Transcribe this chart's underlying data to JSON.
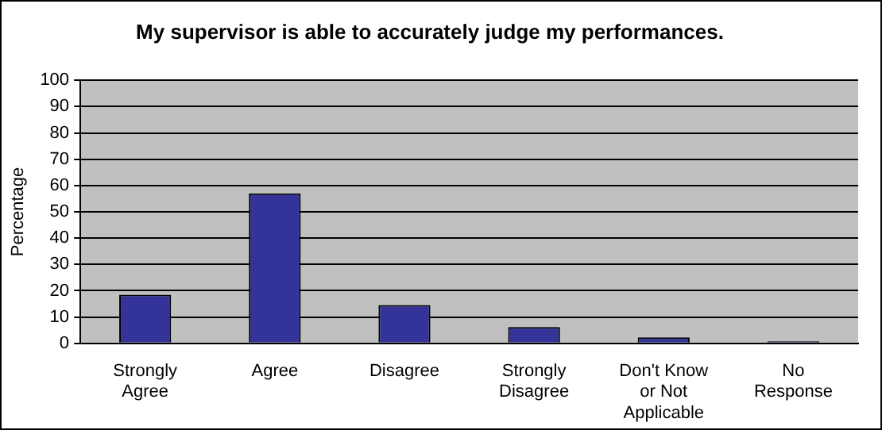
{
  "chart_data": {
    "type": "bar",
    "title": "My supervisor is able to accurately judge my performances.",
    "ylabel": "Percentage",
    "categories": [
      "Strongly Agree",
      "Agree",
      "Disagree",
      "Strongly Disagree",
      "Don't Know or Not Applicable",
      "No Response"
    ],
    "values": [
      18.5,
      57,
      14.6,
      6.2,
      2.3,
      0.8
    ],
    "color": "#333399",
    "ylim": [
      0,
      100
    ],
    "yticks": [
      0,
      10,
      20,
      30,
      40,
      50,
      60,
      70,
      80,
      90,
      100
    ],
    "grid": "y",
    "legend": false
  }
}
